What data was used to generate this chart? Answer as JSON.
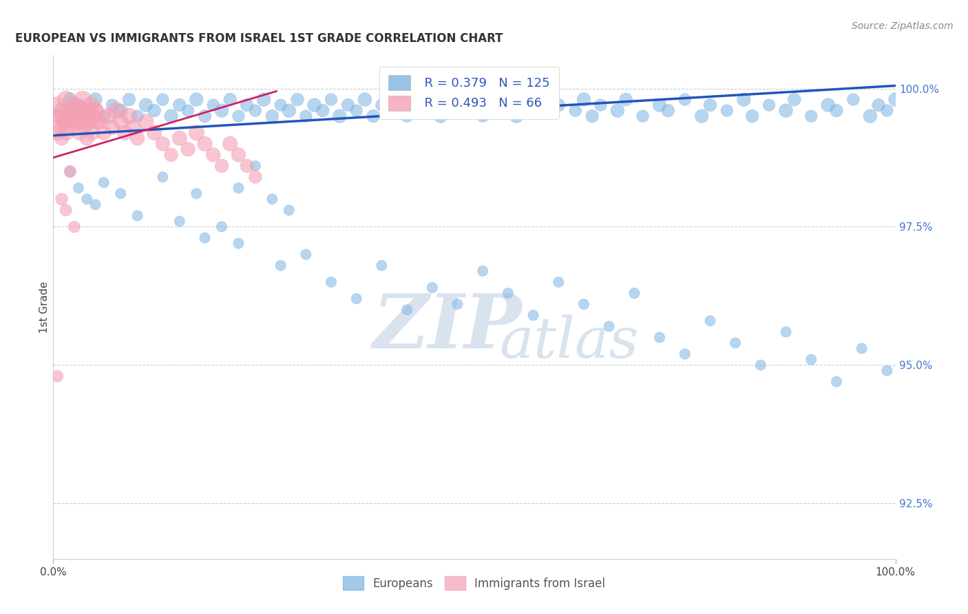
{
  "title": "EUROPEAN VS IMMIGRANTS FROM ISRAEL 1ST GRADE CORRELATION CHART",
  "source": "Source: ZipAtlas.com",
  "ylabel": "1st Grade",
  "right_yticks": [
    100.0,
    97.5,
    95.0,
    92.5
  ],
  "right_ytick_labels": [
    "100.0%",
    "97.5%",
    "95.0%",
    "92.5%"
  ],
  "legend_blue_r": "R = 0.379",
  "legend_blue_n": "N = 125",
  "legend_pink_r": "R = 0.493",
  "legend_pink_n": "N = 66",
  "legend_label_blue": "Europeans",
  "legend_label_pink": "Immigrants from Israel",
  "blue_color": "#7EB4E2",
  "pink_color": "#F4A0B4",
  "blue_line_color": "#2255BB",
  "pink_line_color": "#CC2266",
  "blue_scatter_x": [
    0.02,
    0.03,
    0.04,
    0.05,
    0.06,
    0.07,
    0.08,
    0.09,
    0.1,
    0.11,
    0.12,
    0.13,
    0.14,
    0.15,
    0.16,
    0.17,
    0.18,
    0.19,
    0.2,
    0.21,
    0.22,
    0.23,
    0.24,
    0.25,
    0.26,
    0.27,
    0.28,
    0.29,
    0.3,
    0.31,
    0.32,
    0.33,
    0.34,
    0.35,
    0.36,
    0.37,
    0.38,
    0.39,
    0.4,
    0.41,
    0.42,
    0.43,
    0.44,
    0.45,
    0.46,
    0.47,
    0.48,
    0.5,
    0.51,
    0.52,
    0.53,
    0.54,
    0.55,
    0.56,
    0.57,
    0.58,
    0.6,
    0.62,
    0.63,
    0.64,
    0.65,
    0.67,
    0.68,
    0.7,
    0.72,
    0.73,
    0.75,
    0.77,
    0.78,
    0.8,
    0.82,
    0.83,
    0.85,
    0.87,
    0.88,
    0.9,
    0.92,
    0.93,
    0.95,
    0.97,
    0.98,
    0.99,
    1.0,
    0.02,
    0.03,
    0.04,
    0.05,
    0.06,
    0.08,
    0.1,
    0.13,
    0.15,
    0.17,
    0.2,
    0.22,
    0.24,
    0.26,
    0.28,
    0.18,
    0.22,
    0.27,
    0.3,
    0.33,
    0.36,
    0.39,
    0.42,
    0.45,
    0.48,
    0.51,
    0.54,
    0.57,
    0.6,
    0.63,
    0.66,
    0.69,
    0.72,
    0.75,
    0.78,
    0.81,
    0.84,
    0.87,
    0.9,
    0.93,
    0.96,
    0.99
  ],
  "blue_scatter_y": [
    99.8,
    99.7,
    99.6,
    99.8,
    99.5,
    99.7,
    99.6,
    99.8,
    99.5,
    99.7,
    99.6,
    99.8,
    99.5,
    99.7,
    99.6,
    99.8,
    99.5,
    99.7,
    99.6,
    99.8,
    99.5,
    99.7,
    99.6,
    99.8,
    99.5,
    99.7,
    99.6,
    99.8,
    99.5,
    99.7,
    99.6,
    99.8,
    99.5,
    99.7,
    99.6,
    99.8,
    99.5,
    99.7,
    99.6,
    99.8,
    99.5,
    99.7,
    99.6,
    99.8,
    99.5,
    99.7,
    99.6,
    99.8,
    99.5,
    99.7,
    99.6,
    99.8,
    99.5,
    99.7,
    99.6,
    99.8,
    99.7,
    99.6,
    99.8,
    99.5,
    99.7,
    99.6,
    99.8,
    99.5,
    99.7,
    99.6,
    99.8,
    99.5,
    99.7,
    99.6,
    99.8,
    99.5,
    99.7,
    99.6,
    99.8,
    99.5,
    99.7,
    99.6,
    99.8,
    99.5,
    99.7,
    99.6,
    99.8,
    98.5,
    98.2,
    98.0,
    97.9,
    98.3,
    98.1,
    97.7,
    98.4,
    97.6,
    98.1,
    97.5,
    98.2,
    98.6,
    98.0,
    97.8,
    97.3,
    97.2,
    96.8,
    97.0,
    96.5,
    96.2,
    96.8,
    96.0,
    96.4,
    96.1,
    96.7,
    96.3,
    95.9,
    96.5,
    96.1,
    95.7,
    96.3,
    95.5,
    95.2,
    95.8,
    95.4,
    95.0,
    95.6,
    95.1,
    94.7,
    95.3,
    94.9
  ],
  "blue_scatter_sizes": [
    200,
    180,
    160,
    200,
    180,
    160,
    200,
    180,
    160,
    200,
    180,
    160,
    200,
    180,
    160,
    200,
    180,
    160,
    200,
    180,
    160,
    180,
    160,
    200,
    180,
    160,
    200,
    180,
    160,
    200,
    180,
    160,
    200,
    180,
    160,
    200,
    180,
    160,
    200,
    180,
    160,
    200,
    180,
    160,
    200,
    180,
    160,
    180,
    160,
    200,
    180,
    160,
    200,
    180,
    160,
    200,
    180,
    160,
    200,
    180,
    160,
    200,
    180,
    160,
    200,
    180,
    160,
    200,
    180,
    160,
    200,
    180,
    160,
    200,
    180,
    160,
    200,
    180,
    160,
    200,
    180,
    160,
    200,
    120,
    120,
    120,
    120,
    120,
    120,
    120,
    120,
    120,
    120,
    120,
    120,
    120,
    120,
    120,
    120,
    120,
    120,
    120,
    120,
    120,
    120,
    120,
    120,
    120,
    120,
    120,
    120,
    120,
    120,
    120,
    120,
    120,
    120,
    120,
    120,
    120,
    120,
    120,
    120,
    120,
    120
  ],
  "pink_scatter_x": [
    0.005,
    0.008,
    0.01,
    0.012,
    0.015,
    0.018,
    0.02,
    0.022,
    0.025,
    0.028,
    0.03,
    0.033,
    0.035,
    0.038,
    0.04,
    0.042,
    0.045,
    0.048,
    0.05,
    0.052,
    0.005,
    0.008,
    0.01,
    0.013,
    0.016,
    0.019,
    0.022,
    0.025,
    0.028,
    0.031,
    0.034,
    0.037,
    0.04,
    0.043,
    0.046,
    0.05,
    0.055,
    0.06,
    0.065,
    0.07,
    0.075,
    0.08,
    0.085,
    0.09,
    0.095,
    0.1,
    0.11,
    0.12,
    0.13,
    0.14,
    0.15,
    0.16,
    0.17,
    0.18,
    0.19,
    0.2,
    0.21,
    0.22,
    0.23,
    0.24,
    0.005,
    0.01,
    0.015,
    0.02,
    0.025,
    0.003
  ],
  "pink_scatter_y": [
    99.7,
    99.5,
    99.6,
    99.4,
    99.8,
    99.5,
    99.6,
    99.4,
    99.7,
    99.5,
    99.6,
    99.4,
    99.8,
    99.5,
    99.6,
    99.4,
    99.7,
    99.5,
    99.6,
    99.4,
    99.2,
    99.3,
    99.1,
    99.4,
    99.2,
    99.5,
    99.3,
    99.6,
    99.4,
    99.2,
    99.5,
    99.3,
    99.1,
    99.4,
    99.2,
    99.6,
    99.4,
    99.2,
    99.5,
    99.3,
    99.6,
    99.4,
    99.2,
    99.5,
    99.3,
    99.1,
    99.4,
    99.2,
    99.0,
    98.8,
    99.1,
    98.9,
    99.2,
    99.0,
    98.8,
    98.6,
    99.0,
    98.8,
    98.6,
    98.4,
    94.8,
    98.0,
    97.8,
    98.5,
    97.5,
    99.5
  ],
  "pink_scatter_sizes": [
    300,
    260,
    280,
    240,
    320,
    260,
    280,
    240,
    300,
    260,
    280,
    240,
    320,
    260,
    280,
    240,
    300,
    260,
    280,
    240,
    250,
    240,
    220,
    260,
    240,
    280,
    240,
    300,
    260,
    240,
    280,
    240,
    220,
    260,
    240,
    300,
    260,
    240,
    280,
    240,
    300,
    260,
    240,
    280,
    240,
    220,
    260,
    240,
    220,
    200,
    240,
    220,
    260,
    240,
    220,
    200,
    240,
    220,
    200,
    180,
    150,
    160,
    150,
    160,
    150,
    250
  ],
  "xlim": [
    0.0,
    1.0
  ],
  "ylim": [
    91.5,
    100.6
  ],
  "blue_trend_x": [
    0.0,
    1.0
  ],
  "blue_trend_y": [
    99.15,
    100.05
  ],
  "pink_trend_x": [
    0.0,
    0.265
  ],
  "pink_trend_y": [
    98.75,
    99.95
  ],
  "watermark_zip": "ZIP",
  "watermark_atlas": "atlas",
  "watermark_color": "#D8E8F0",
  "watermark_fontsize": 80
}
